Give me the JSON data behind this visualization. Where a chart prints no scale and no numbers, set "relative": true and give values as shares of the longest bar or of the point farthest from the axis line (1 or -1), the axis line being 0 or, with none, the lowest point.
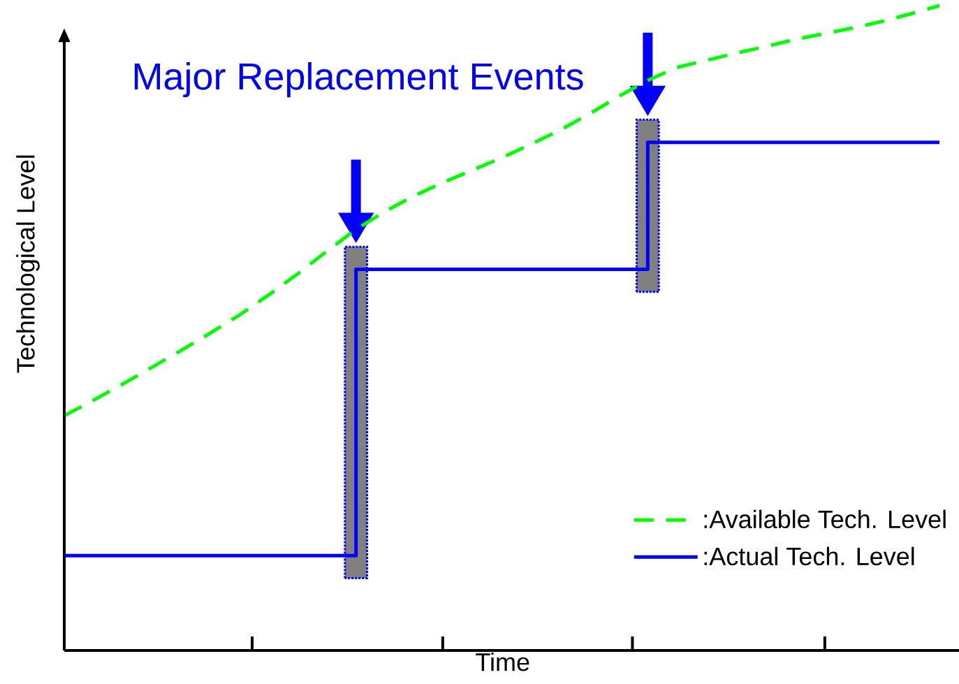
{
  "chart_data": {
    "type": "line",
    "relative": true,
    "xlabel": "Time",
    "ylabel": "Technological Level",
    "annotations": [
      "Major Replacement Events"
    ],
    "categories": [
      null,
      null,
      null,
      null,
      null,
      null,
      null,
      null,
      null,
      null,
      null,
      null,
      null,
      null,
      null,
      null,
      null,
      null,
      null,
      null,
      null,
      null,
      null,
      null,
      null,
      null,
      null,
      null,
      null,
      null,
      null
    ],
    "tick_labels": false,
    "legend": "bottom right",
    "series": [
      {
        "name": ":Available Tech. Level",
        "color": "#00ff00",
        "line_style": "dashed",
        "values": [
          0.364,
          0.388,
          0.413,
          0.439,
          0.465,
          0.492,
          0.52,
          0.551,
          0.584,
          0.619,
          0.653,
          0.681,
          0.705,
          0.726,
          0.745,
          0.764,
          0.785,
          0.807,
          0.832,
          0.859,
          0.884,
          0.904,
          0.915,
          0.926,
          0.936,
          0.947,
          0.956,
          0.965,
          0.975,
          0.987,
          1
        ]
      },
      {
        "name": ":Actual Tech. Level",
        "type": "step",
        "color": "#0000ff",
        "line_style": "solid",
        "values": [
          0.147,
          0.147,
          0.147,
          0.147,
          0.147,
          0.147,
          0.147,
          0.147,
          0.147,
          0.147,
          0.591,
          0.591,
          0.591,
          0.591,
          0.591,
          0.591,
          0.591,
          0.591,
          0.591,
          0.591,
          0.788,
          0.788,
          0.788,
          0.788,
          0.788,
          0.788,
          0.788,
          0.788,
          0.788,
          0.788,
          0.788
        ]
      }
    ]
  }
}
